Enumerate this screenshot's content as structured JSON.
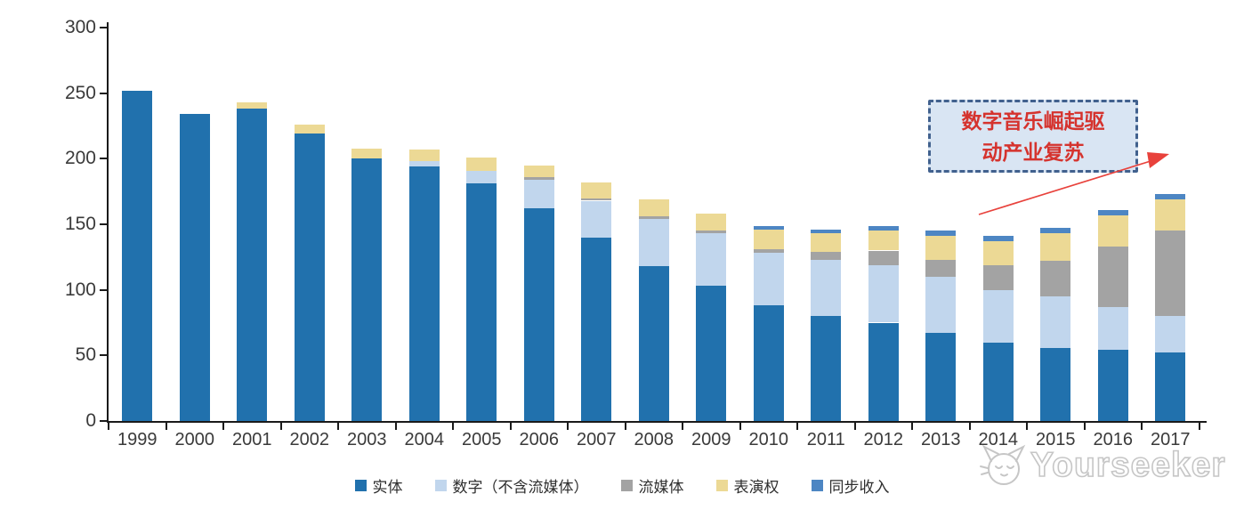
{
  "chart_data": {
    "type": "bar",
    "subtype": "stacked",
    "categories": [
      "1999",
      "2000",
      "2001",
      "2002",
      "2003",
      "2004",
      "2005",
      "2006",
      "2007",
      "2008",
      "2009",
      "2010",
      "2011",
      "2012",
      "2013",
      "2014",
      "2015",
      "2016",
      "2017"
    ],
    "series": [
      {
        "name": "实体",
        "color": "#2171AD",
        "values": [
          252,
          234,
          238,
          219,
          200,
          194,
          181,
          162,
          140,
          118,
          103,
          88,
          80,
          75,
          67,
          60,
          56,
          54,
          52
        ]
      },
      {
        "name": "数字（不含流媒体）",
        "color": "#C1D6ED",
        "values": [
          0,
          0,
          0,
          0,
          0,
          4,
          10,
          22,
          28,
          36,
          40,
          40,
          43,
          44,
          43,
          40,
          39,
          33,
          28
        ]
      },
      {
        "name": "流媒体",
        "color": "#A3A3A3",
        "values": [
          0,
          0,
          0,
          0,
          0,
          0,
          0,
          2,
          2,
          2,
          2,
          3,
          6,
          11,
          13,
          19,
          27,
          46,
          65
        ]
      },
      {
        "name": "表演权",
        "color": "#ECD995",
        "values": [
          0,
          0,
          5,
          7,
          8,
          9,
          10,
          9,
          12,
          13,
          13,
          15,
          14,
          15,
          18,
          18,
          21,
          24,
          24
        ]
      },
      {
        "name": "同步收入",
        "color": "#4D86C3",
        "values": [
          0,
          0,
          0,
          0,
          0,
          0,
          0,
          0,
          0,
          0,
          0,
          3,
          3,
          4,
          4,
          4,
          4,
          4,
          4
        ]
      }
    ],
    "title": "",
    "xlabel": "",
    "ylabel": "",
    "ylim": [
      0,
      300
    ],
    "y_ticks": [
      0,
      50,
      100,
      150,
      200,
      250,
      300
    ],
    "grid": false,
    "legend_position": "bottom"
  },
  "annotation": {
    "line1": "数字音乐崛起驱",
    "line2": "动产业复苏",
    "text_color": "#d5332e",
    "box_fill": "#d9e5f3",
    "box_border": "#41618e",
    "arrow_color": "#e8423c"
  },
  "watermark": {
    "text": "Yourseeker",
    "logo_color": "#c6c6c6"
  },
  "axis_color": "#1a1a1a",
  "label_color": "#3a3a3a"
}
